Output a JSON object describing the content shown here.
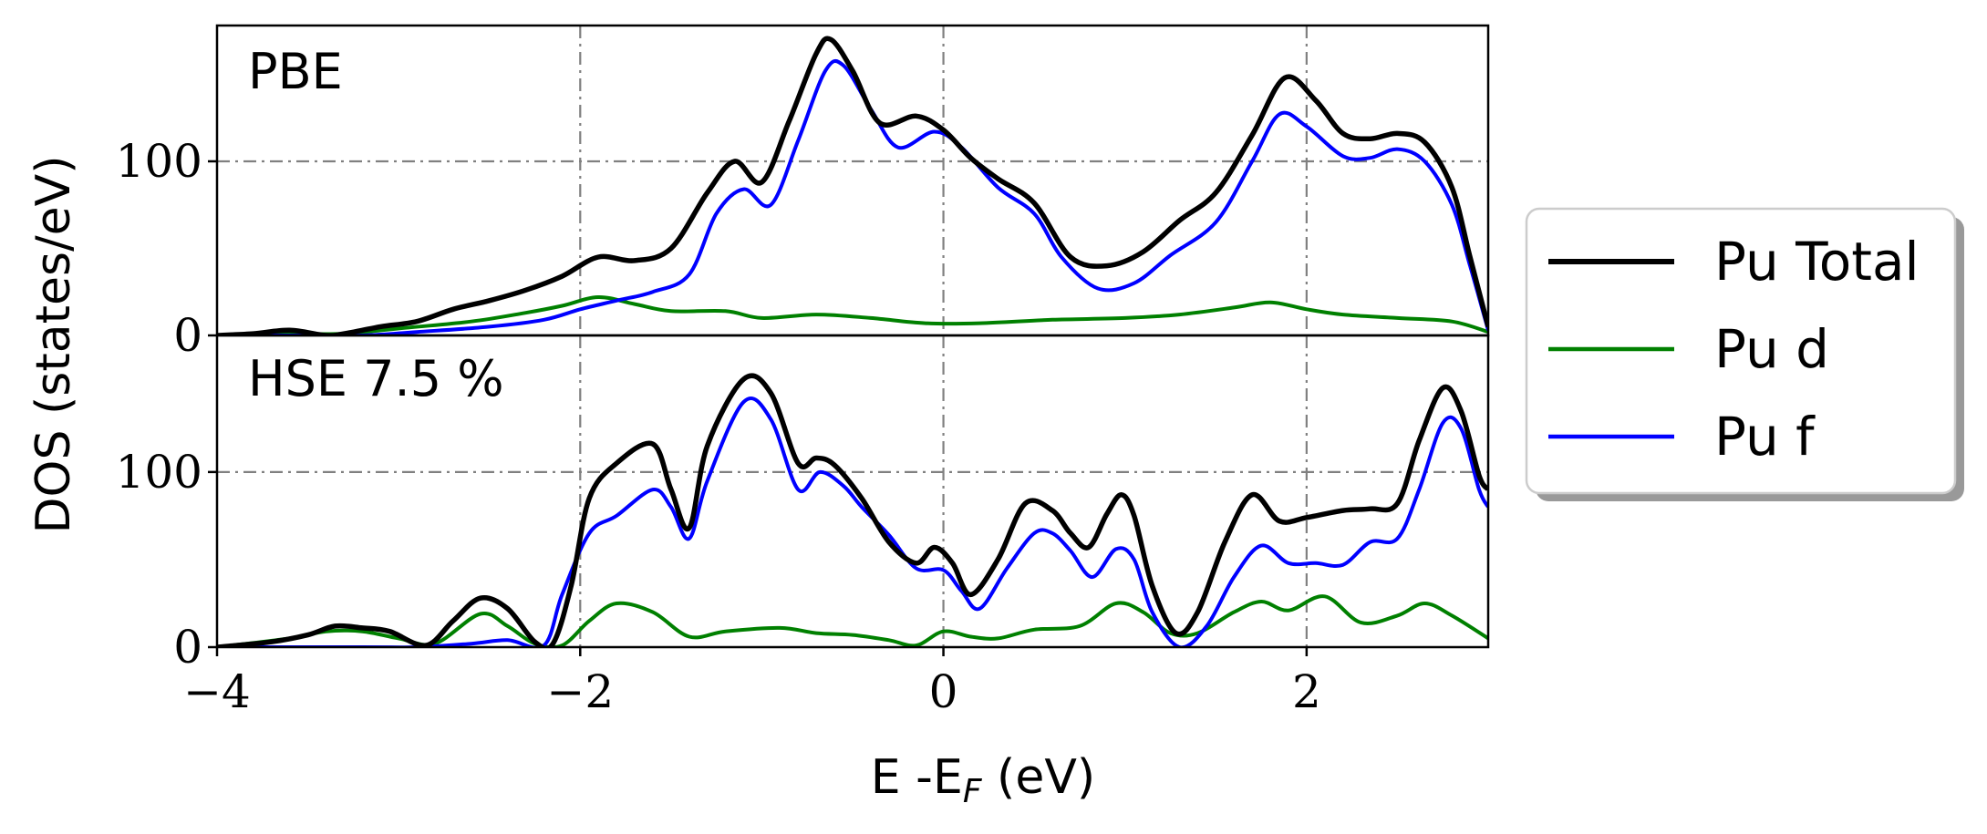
{
  "chart_data": {
    "type": "line",
    "xlabel": "E -E",
    "xlabel_sub": "F",
    "xlabel_unit": " (eV)",
    "ylabel": "DOS (states/eV)",
    "xlim": [
      -4,
      3
    ],
    "xticks": [
      -4,
      -2,
      0,
      2
    ],
    "xtick_labels": [
      "−4",
      "−2",
      "0",
      "2"
    ],
    "grid": true,
    "legend_position": "right",
    "legend": [
      {
        "label": "Pu Total",
        "color": "#000000"
      },
      {
        "label": "Pu d",
        "color": "#008000"
      },
      {
        "label": "Pu f",
        "color": "#0000ff"
      }
    ],
    "panels": [
      {
        "label": "PBE",
        "ylim": [
          0,
          178
        ],
        "yticks": [
          0,
          100
        ],
        "ytick_labels": [
          "0",
          "100"
        ],
        "series": [
          {
            "name": "Pu Total",
            "color": "#000000",
            "points": [
              [
                -4,
                0
              ],
              [
                -3.8,
                1
              ],
              [
                -3.6,
                3
              ],
              [
                -3.4,
                0
              ],
              [
                -3.3,
                1
              ],
              [
                -3.1,
                5
              ],
              [
                -2.9,
                8
              ],
              [
                -2.7,
                15
              ],
              [
                -2.5,
                20
              ],
              [
                -2.3,
                26
              ],
              [
                -2.1,
                34
              ],
              [
                -1.9,
                45
              ],
              [
                -1.7,
                43
              ],
              [
                -1.5,
                50
              ],
              [
                -1.3,
                82
              ],
              [
                -1.15,
                100
              ],
              [
                -1.0,
                88
              ],
              [
                -0.85,
                123
              ],
              [
                -0.7,
                162
              ],
              [
                -0.62,
                170
              ],
              [
                -0.5,
                152
              ],
              [
                -0.35,
                122
              ],
              [
                -0.15,
                126
              ],
              [
                0.0,
                118
              ],
              [
                0.15,
                102
              ],
              [
                0.3,
                90
              ],
              [
                0.5,
                76
              ],
              [
                0.7,
                45
              ],
              [
                0.9,
                40
              ],
              [
                1.1,
                48
              ],
              [
                1.3,
                66
              ],
              [
                1.5,
                82
              ],
              [
                1.7,
                115
              ],
              [
                1.88,
                148
              ],
              [
                2.05,
                135
              ],
              [
                2.2,
                116
              ],
              [
                2.35,
                113
              ],
              [
                2.5,
                116
              ],
              [
                2.65,
                111
              ],
              [
                2.8,
                85
              ],
              [
                2.9,
                45
              ],
              [
                3.0,
                5
              ]
            ]
          },
          {
            "name": "Pu d",
            "color": "#008000",
            "points": [
              [
                -4,
                0
              ],
              [
                -3.8,
                1
              ],
              [
                -3.6,
                1
              ],
              [
                -3.3,
                1
              ],
              [
                -3.0,
                4
              ],
              [
                -2.6,
                8
              ],
              [
                -2.3,
                13
              ],
              [
                -2.1,
                17
              ],
              [
                -1.9,
                22
              ],
              [
                -1.7,
                18
              ],
              [
                -1.5,
                14
              ],
              [
                -1.2,
                14
              ],
              [
                -1.0,
                10
              ],
              [
                -0.7,
                12
              ],
              [
                -0.4,
                10
              ],
              [
                -0.1,
                7
              ],
              [
                0.2,
                7
              ],
              [
                0.6,
                9
              ],
              [
                1.0,
                10
              ],
              [
                1.3,
                12
              ],
              [
                1.6,
                16
              ],
              [
                1.8,
                19
              ],
              [
                2.0,
                15
              ],
              [
                2.2,
                12
              ],
              [
                2.5,
                10
              ],
              [
                2.8,
                8
              ],
              [
                3.0,
                2
              ]
            ]
          },
          {
            "name": "Pu f",
            "color": "#0000ff",
            "points": [
              [
                -4,
                0
              ],
              [
                -3.6,
                0
              ],
              [
                -3.2,
                0
              ],
              [
                -2.9,
                2
              ],
              [
                -2.5,
                5
              ],
              [
                -2.2,
                9
              ],
              [
                -2.0,
                15
              ],
              [
                -1.8,
                20
              ],
              [
                -1.6,
                25
              ],
              [
                -1.4,
                35
              ],
              [
                -1.25,
                70
              ],
              [
                -1.1,
                84
              ],
              [
                -0.95,
                75
              ],
              [
                -0.8,
                112
              ],
              [
                -0.65,
                152
              ],
              [
                -0.55,
                155
              ],
              [
                -0.4,
                130
              ],
              [
                -0.25,
                108
              ],
              [
                -0.05,
                117
              ],
              [
                0.1,
                108
              ],
              [
                0.3,
                85
              ],
              [
                0.5,
                70
              ],
              [
                0.65,
                45
              ],
              [
                0.85,
                27
              ],
              [
                1.05,
                30
              ],
              [
                1.25,
                46
              ],
              [
                1.5,
                65
              ],
              [
                1.7,
                100
              ],
              [
                1.85,
                127
              ],
              [
                2.0,
                120
              ],
              [
                2.2,
                103
              ],
              [
                2.35,
                102
              ],
              [
                2.5,
                107
              ],
              [
                2.65,
                100
              ],
              [
                2.8,
                75
              ],
              [
                2.9,
                40
              ],
              [
                3.0,
                3
              ]
            ]
          }
        ]
      },
      {
        "label": "HSE 7.5 %",
        "ylim": [
          0,
          178
        ],
        "yticks": [
          0,
          100
        ],
        "ytick_labels": [
          "0",
          "100"
        ],
        "series": [
          {
            "name": "Pu Total",
            "color": "#000000",
            "points": [
              [
                -4,
                0
              ],
              [
                -3.7,
                3
              ],
              [
                -3.5,
                7
              ],
              [
                -3.35,
                12
              ],
              [
                -3.2,
                11
              ],
              [
                -3.05,
                9
              ],
              [
                -2.85,
                1
              ],
              [
                -2.7,
                15
              ],
              [
                -2.55,
                28
              ],
              [
                -2.4,
                22
              ],
              [
                -2.25,
                3
              ],
              [
                -2.15,
                2
              ],
              [
                -2.05,
                35
              ],
              [
                -1.95,
                85
              ],
              [
                -1.8,
                105
              ],
              [
                -1.6,
                116
              ],
              [
                -1.5,
                90
              ],
              [
                -1.4,
                68
              ],
              [
                -1.3,
                115
              ],
              [
                -1.1,
                153
              ],
              [
                -0.95,
                145
              ],
              [
                -0.8,
                105
              ],
              [
                -0.7,
                108
              ],
              [
                -0.6,
                104
              ],
              [
                -0.45,
                85
              ],
              [
                -0.3,
                60
              ],
              [
                -0.15,
                48
              ],
              [
                -0.05,
                57
              ],
              [
                0.05,
                48
              ],
              [
                0.15,
                30
              ],
              [
                0.3,
                50
              ],
              [
                0.45,
                82
              ],
              [
                0.6,
                78
              ],
              [
                0.7,
                65
              ],
              [
                0.8,
                57
              ],
              [
                0.9,
                76
              ],
              [
                0.98,
                87
              ],
              [
                1.05,
                75
              ],
              [
                1.15,
                35
              ],
              [
                1.28,
                8
              ],
              [
                1.4,
                20
              ],
              [
                1.55,
                60
              ],
              [
                1.7,
                87
              ],
              [
                1.85,
                72
              ],
              [
                2.0,
                74
              ],
              [
                2.2,
                78
              ],
              [
                2.35,
                79
              ],
              [
                2.5,
                82
              ],
              [
                2.62,
                118
              ],
              [
                2.75,
                148
              ],
              [
                2.85,
                135
              ],
              [
                2.95,
                98
              ],
              [
                3.0,
                90
              ]
            ]
          },
          {
            "name": "Pu d",
            "color": "#008000",
            "points": [
              [
                -4,
                0
              ],
              [
                -3.6,
                5
              ],
              [
                -3.4,
                9
              ],
              [
                -3.2,
                9
              ],
              [
                -3.0,
                5
              ],
              [
                -2.8,
                2
              ],
              [
                -2.55,
                19
              ],
              [
                -2.4,
                12
              ],
              [
                -2.25,
                2
              ],
              [
                -2.1,
                1
              ],
              [
                -1.95,
                15
              ],
              [
                -1.8,
                25
              ],
              [
                -1.6,
                20
              ],
              [
                -1.4,
                6
              ],
              [
                -1.2,
                9
              ],
              [
                -0.9,
                11
              ],
              [
                -0.7,
                8
              ],
              [
                -0.5,
                7
              ],
              [
                -0.3,
                4
              ],
              [
                -0.15,
                1
              ],
              [
                0.0,
                9
              ],
              [
                0.15,
                6
              ],
              [
                0.3,
                5
              ],
              [
                0.5,
                10
              ],
              [
                0.75,
                12
              ],
              [
                0.95,
                25
              ],
              [
                1.1,
                20
              ],
              [
                1.25,
                8
              ],
              [
                1.4,
                8
              ],
              [
                1.6,
                20
              ],
              [
                1.75,
                26
              ],
              [
                1.9,
                21
              ],
              [
                2.1,
                29
              ],
              [
                2.3,
                14
              ],
              [
                2.5,
                18
              ],
              [
                2.65,
                25
              ],
              [
                2.8,
                18
              ],
              [
                3.0,
                5
              ]
            ]
          },
          {
            "name": "Pu f",
            "color": "#0000ff",
            "points": [
              [
                -4,
                0
              ],
              [
                -3.2,
                0
              ],
              [
                -2.9,
                0
              ],
              [
                -2.6,
                2
              ],
              [
                -2.4,
                4
              ],
              [
                -2.2,
                1
              ],
              [
                -2.1,
                30
              ],
              [
                -1.95,
                65
              ],
              [
                -1.8,
                75
              ],
              [
                -1.6,
                90
              ],
              [
                -1.5,
                80
              ],
              [
                -1.4,
                62
              ],
              [
                -1.3,
                95
              ],
              [
                -1.1,
                140
              ],
              [
                -0.95,
                130
              ],
              [
                -0.8,
                90
              ],
              [
                -0.68,
                100
              ],
              [
                -0.55,
                92
              ],
              [
                -0.45,
                80
              ],
              [
                -0.3,
                64
              ],
              [
                -0.15,
                45
              ],
              [
                0.0,
                44
              ],
              [
                0.1,
                32
              ],
              [
                0.2,
                22
              ],
              [
                0.35,
                45
              ],
              [
                0.5,
                65
              ],
              [
                0.6,
                65
              ],
              [
                0.7,
                55
              ],
              [
                0.82,
                40
              ],
              [
                0.95,
                56
              ],
              [
                1.05,
                50
              ],
              [
                1.15,
                20
              ],
              [
                1.3,
                0
              ],
              [
                1.45,
                12
              ],
              [
                1.6,
                40
              ],
              [
                1.75,
                58
              ],
              [
                1.9,
                48
              ],
              [
                2.05,
                48
              ],
              [
                2.2,
                47
              ],
              [
                2.35,
                60
              ],
              [
                2.5,
                62
              ],
              [
                2.62,
                90
              ],
              [
                2.75,
                128
              ],
              [
                2.85,
                125
              ],
              [
                2.95,
                90
              ],
              [
                3.0,
                80
              ]
            ]
          }
        ]
      }
    ]
  }
}
